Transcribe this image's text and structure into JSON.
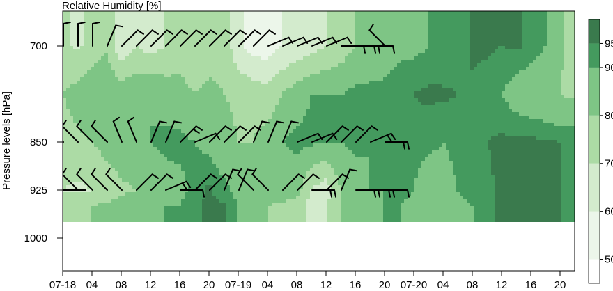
{
  "chart_data": {
    "type": "heatmap",
    "title": "Relative Humidity [%]",
    "ylabel": "Pressure levels [hPa]",
    "xlabel": "",
    "x_tick_labels": [
      "07-18",
      "04",
      "08",
      "12",
      "16",
      "20",
      "07-19",
      "04",
      "08",
      "12",
      "16",
      "20",
      "07-20",
      "04",
      "08",
      "12",
      "16",
      "20"
    ],
    "y_tick_labels": [
      "700",
      "850",
      "925",
      "1000"
    ],
    "y_levels": [
      700,
      850,
      925,
      1000
    ],
    "colorbar": {
      "tick_labels": [
        "50",
        "60",
        "70",
        "80",
        "90",
        "95"
      ],
      "bounds": [
        45,
        50,
        60,
        70,
        80,
        90,
        95,
        100
      ],
      "colors": [
        "#ffffff",
        "#ecf6ea",
        "#d3ebcd",
        "#acdba5",
        "#7ec585",
        "#449a5e",
        "#3a7a4d"
      ]
    },
    "grid": false,
    "legend": "colorbar-right",
    "hours": [
      0,
      2,
      4,
      6,
      8,
      10,
      12,
      14,
      16,
      18,
      20,
      22,
      24,
      26,
      28,
      30,
      32,
      34,
      36,
      38,
      40,
      42,
      44,
      46,
      48,
      50,
      52,
      54,
      56,
      58,
      60,
      62,
      64,
      66,
      68,
      70
    ],
    "rh": {
      "700": [
        72,
        68,
        74,
        78,
        62,
        70,
        66,
        70,
        74,
        70,
        76,
        78,
        62,
        56,
        54,
        60,
        62,
        66,
        70,
        74,
        80,
        84,
        86,
        88,
        88,
        90,
        90,
        92,
        96,
        96,
        95,
        96,
        94,
        90,
        82,
        72
      ],
      "775": [
        80,
        84,
        88,
        90,
        86,
        88,
        90,
        86,
        84,
        80,
        82,
        80,
        78,
        76,
        74,
        80,
        86,
        90,
        90,
        90,
        92,
        92,
        92,
        94,
        95,
        96,
        96,
        95,
        94,
        92,
        90,
        86,
        84,
        82,
        80,
        78
      ],
      "850": [
        76,
        78,
        80,
        84,
        86,
        88,
        90,
        92,
        92,
        90,
        88,
        84,
        80,
        80,
        84,
        90,
        92,
        92,
        90,
        90,
        92,
        90,
        92,
        92,
        94,
        92,
        90,
        92,
        94,
        95,
        96,
        96,
        96,
        96,
        95,
        95
      ],
      "925": [
        70,
        68,
        70,
        74,
        78,
        80,
        84,
        86,
        88,
        92,
        96,
        92,
        88,
        84,
        84,
        86,
        84,
        70,
        64,
        80,
        86,
        90,
        90,
        92,
        90,
        84,
        86,
        90,
        92,
        94,
        96,
        96,
        96,
        96,
        95,
        94
      ],
      "950": [
        76,
        78,
        80,
        82,
        84,
        86,
        88,
        90,
        90,
        94,
        96,
        96,
        90,
        86,
        80,
        78,
        76,
        66,
        70,
        80,
        86,
        88,
        90,
        90,
        88,
        84,
        84,
        88,
        90,
        94,
        96,
        96,
        96,
        96,
        95,
        94
      ]
    },
    "wind_barbs": {
      "700": [
        [
          0,
          "n",
          1
        ],
        [
          2,
          "n",
          1
        ],
        [
          4,
          "n",
          1
        ],
        [
          6,
          "nne",
          1
        ],
        [
          8,
          "ne",
          1
        ],
        [
          10,
          "ne",
          1
        ],
        [
          12,
          "ne",
          1
        ],
        [
          14,
          "ne",
          1
        ],
        [
          16,
          "ne",
          1
        ],
        [
          18,
          "ne",
          1
        ],
        [
          20,
          "ne",
          1
        ],
        [
          22,
          "ne",
          1
        ],
        [
          24,
          "ne",
          1
        ],
        [
          26,
          "ne",
          1
        ],
        [
          28,
          "ene",
          1
        ],
        [
          30,
          "ene",
          1
        ],
        [
          32,
          "ene",
          1
        ],
        [
          34,
          "ene",
          1
        ],
        [
          36,
          "ene",
          1
        ],
        [
          38,
          "e",
          1
        ],
        [
          40,
          "e",
          2
        ],
        [
          42,
          "e",
          1
        ],
        [
          44,
          "nw",
          1
        ]
      ],
      "850": [
        [
          0,
          "nw",
          0
        ],
        [
          2,
          "nw",
          1
        ],
        [
          4,
          "nw",
          1
        ],
        [
          6,
          "nw",
          1
        ],
        [
          8,
          "nnw",
          1
        ],
        [
          10,
          "nnw",
          1
        ],
        [
          12,
          "nne",
          1
        ],
        [
          14,
          "nne",
          1
        ],
        [
          16,
          "ne",
          2
        ],
        [
          18,
          "ene",
          1
        ],
        [
          20,
          "ne",
          1
        ],
        [
          22,
          "ne",
          1
        ],
        [
          24,
          "ne",
          1
        ],
        [
          26,
          "nne",
          1
        ],
        [
          28,
          "nne",
          1
        ],
        [
          30,
          "nne",
          1
        ],
        [
          32,
          "ene",
          1
        ],
        [
          34,
          "ene",
          1
        ],
        [
          36,
          "ne",
          1
        ],
        [
          38,
          "ne",
          1
        ],
        [
          40,
          "ne",
          1
        ],
        [
          42,
          "ene",
          2
        ],
        [
          44,
          "e",
          2
        ]
      ],
      "925": [
        [
          0,
          "e",
          0
        ],
        [
          2,
          "nw",
          1
        ],
        [
          4,
          "nw",
          1
        ],
        [
          6,
          "nw",
          1
        ],
        [
          8,
          "nw",
          1
        ],
        [
          10,
          "ne",
          1
        ],
        [
          12,
          "ne",
          1
        ],
        [
          14,
          "ene",
          2
        ],
        [
          16,
          "e",
          1
        ],
        [
          18,
          "ne",
          1
        ],
        [
          20,
          "ne",
          1
        ],
        [
          22,
          "nne",
          1
        ],
        [
          24,
          "nne",
          1
        ],
        [
          26,
          "nw",
          1
        ],
        [
          28,
          "nw",
          1
        ],
        [
          30,
          "ne",
          1
        ],
        [
          32,
          "ne",
          1
        ],
        [
          34,
          "e",
          2
        ],
        [
          36,
          "ne",
          1
        ],
        [
          38,
          "nne",
          1
        ],
        [
          40,
          "e",
          2
        ],
        [
          42,
          "e",
          2
        ],
        [
          44,
          "e",
          1
        ]
      ]
    }
  }
}
